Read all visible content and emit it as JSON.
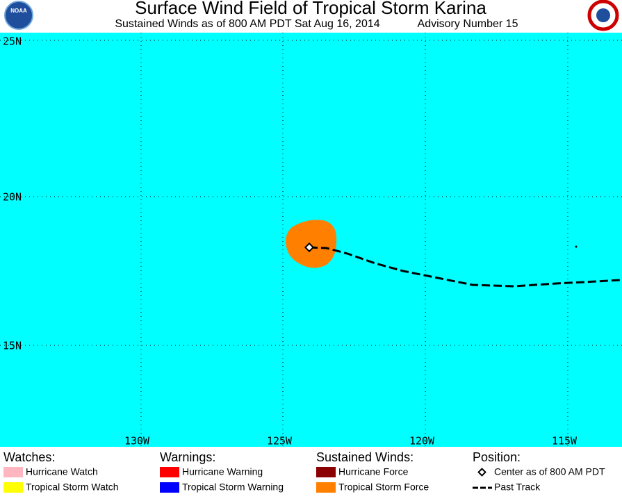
{
  "header": {
    "title": "Surface Wind Field of Tropical Storm Karina",
    "subtitle_left": "Sustained Winds as of 800 AM PDT Sat Aug 16, 2014",
    "subtitle_right": "Advisory Number 15",
    "logo_left": "NOAA"
  },
  "map": {
    "lat_labels": [
      "25N",
      "20N",
      "15N"
    ],
    "lon_labels": [
      "130W",
      "125W",
      "120W",
      "115W"
    ]
  },
  "legend": [
    {
      "heading": "Watches:",
      "items": [
        "Hurricane Watch",
        "Tropical Storm Watch"
      ]
    },
    {
      "heading": "Warnings:",
      "items": [
        "Hurricane Warning",
        "Tropical Storm Warning"
      ]
    },
    {
      "heading": "Sustained Winds:",
      "items": [
        "Hurricane Force",
        "Tropical Storm Force"
      ]
    },
    {
      "heading": "Position:",
      "items": [
        "Center as of 800 AM PDT",
        "Past Track"
      ]
    }
  ]
}
